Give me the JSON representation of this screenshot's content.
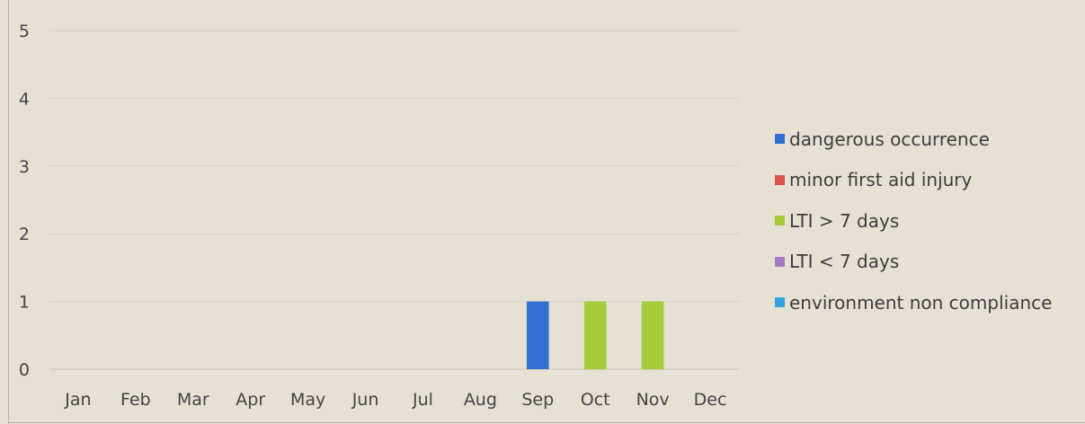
{
  "chart_data": {
    "type": "bar",
    "categories": [
      "Jan",
      "Feb",
      "Mar",
      "Apr",
      "May",
      "Jun",
      "Jul",
      "Aug",
      "Sep",
      "Oct",
      "Nov",
      "Dec"
    ],
    "series": [
      {
        "name": "dangerous occurrence",
        "color": "#2e6fd1",
        "values": [
          0,
          0,
          0,
          0,
          0,
          0,
          0,
          0,
          1,
          0,
          0,
          0
        ]
      },
      {
        "name": "minor first aid injury",
        "color": "#d9534a",
        "values": [
          0,
          0,
          0,
          0,
          0,
          0,
          0,
          0,
          0,
          0,
          0,
          0
        ]
      },
      {
        "name": "LTI > 7 days",
        "color": "#a6cc3a",
        "values": [
          0,
          0,
          0,
          0,
          0,
          0,
          0,
          0,
          0,
          1,
          1,
          0
        ]
      },
      {
        "name": "LTI < 7 days",
        "color": "#a47bc2",
        "values": [
          0,
          0,
          0,
          0,
          0,
          0,
          0,
          0,
          0,
          0,
          0,
          0
        ]
      },
      {
        "name": "environment non compliance",
        "color": "#33a3dc",
        "values": [
          0,
          0,
          0,
          0,
          0,
          0,
          0,
          0,
          0,
          0,
          0,
          0
        ]
      }
    ],
    "yticks": [
      "0",
      "1",
      "2",
      "3",
      "4",
      "5"
    ],
    "ylim": [
      0,
      5
    ],
    "grid": true,
    "stacked": true,
    "legend_position": "right",
    "title": "",
    "xlabel": "",
    "ylabel": ""
  }
}
